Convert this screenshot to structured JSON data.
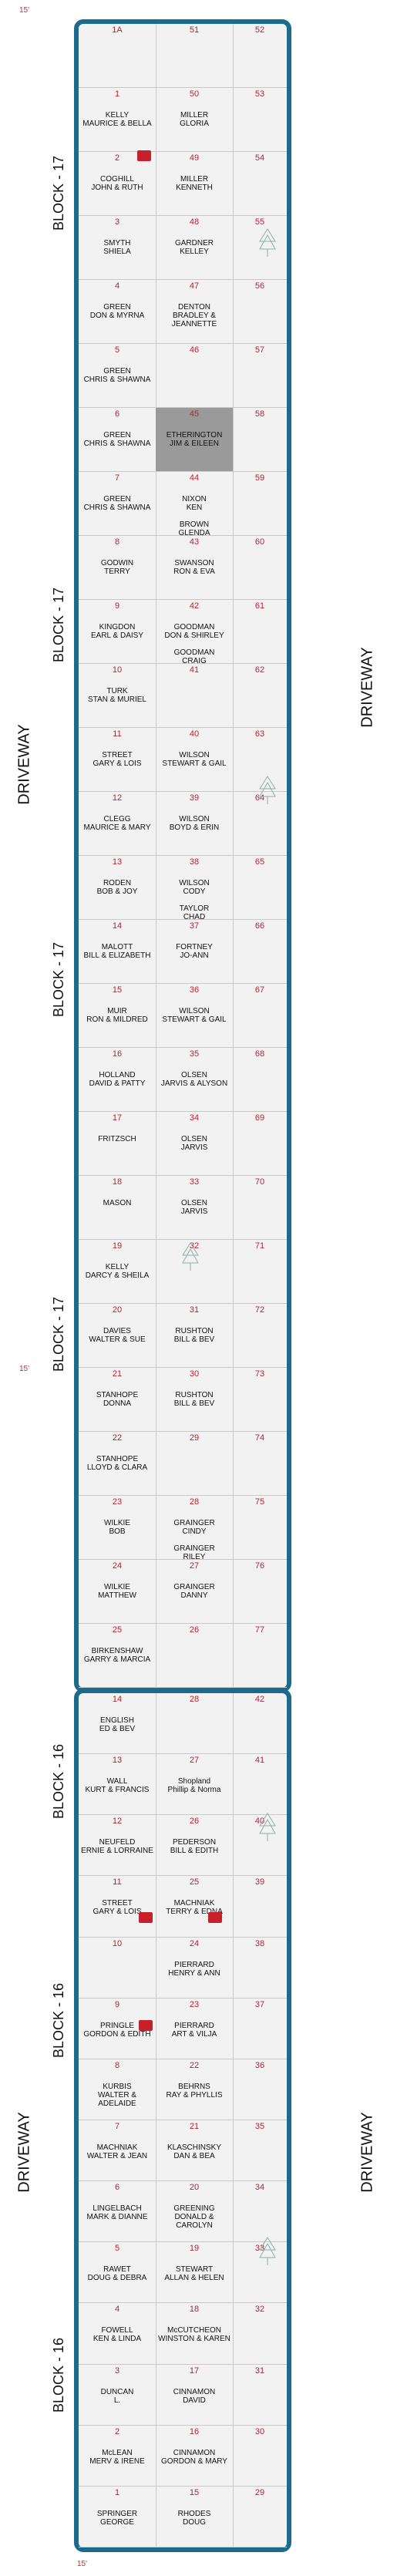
{
  "labels": {
    "block17": "BLOCK - 17",
    "block16": "BLOCK - 16",
    "driveway": "DRIVEWAY",
    "edge_ft": "15'"
  },
  "colors": {
    "frame": "#1d6b8c",
    "number": "#b5232b",
    "background": "#f2f2f2"
  },
  "block17_rows": [
    {
      "a": "1A",
      "b": "51",
      "c": "52",
      "occ_a": "",
      "occ_b": ""
    },
    {
      "a": "1",
      "b": "50",
      "c": "53",
      "occ_a": "KELLY\nMAURICE & BELLA",
      "occ_b": "MILLER\nGLORIA"
    },
    {
      "a": "2",
      "b": "49",
      "c": "54",
      "occ_a": "COGHILL\nJOHN & RUTH",
      "occ_b": "MILLER\nKENNETH"
    },
    {
      "a": "3",
      "b": "48",
      "c": "55",
      "occ_a": "SMYTH\nSHIELA",
      "occ_b": "GARDNER\nKELLEY"
    },
    {
      "a": "4",
      "b": "47",
      "c": "56",
      "occ_a": "GREEN\nDON & MYRNA",
      "occ_b": "DENTON\nBRADLEY &\nJEANNETTE"
    },
    {
      "a": "5",
      "b": "46",
      "c": "57",
      "occ_a": "GREEN\nCHRIS & SHAWNA",
      "occ_b": ""
    },
    {
      "a": "6",
      "b": "45",
      "c": "58",
      "occ_a": "GREEN\nCHRIS & SHAWNA",
      "occ_b": "ETHERINGTON\nJIM & EILEEN"
    },
    {
      "a": "7",
      "b": "44",
      "c": "59",
      "occ_a": "GREEN\nCHRIS & SHAWNA",
      "occ_b": "NIXON\nKEN\n\nBROWN\nGLENDA"
    },
    {
      "a": "8",
      "b": "43",
      "c": "60",
      "occ_a": "GODWIN\nTERRY",
      "occ_b": "SWANSON\nRON & EVA"
    },
    {
      "a": "9",
      "b": "42",
      "c": "61",
      "occ_a": "KINGDON\nEARL & DAISY",
      "occ_b": "GOODMAN\nDON & SHIRLEY\n\nGOODMAN\nCRAIG"
    },
    {
      "a": "10",
      "b": "41",
      "c": "62",
      "occ_a": "TURK\nSTAN & MURIEL",
      "occ_b": ""
    },
    {
      "a": "11",
      "b": "40",
      "c": "63",
      "occ_a": "STREET\nGARY & LOIS",
      "occ_b": "WILSON\nSTEWART & GAIL"
    },
    {
      "a": "12",
      "b": "39",
      "c": "64",
      "occ_a": "CLEGG\nMAURICE & MARY",
      "occ_b": "WILSON\nBOYD & ERIN"
    },
    {
      "a": "13",
      "b": "38",
      "c": "65",
      "occ_a": "RODEN\nBOB & JOY",
      "occ_b": "WILSON\nCODY\n\nTAYLOR\nCHAD"
    },
    {
      "a": "14",
      "b": "37",
      "c": "66",
      "occ_a": "MALOTT\nBILL & ELIZABETH",
      "occ_b": "FORTNEY\nJO-ANN"
    },
    {
      "a": "15",
      "b": "36",
      "c": "67",
      "occ_a": "MUIR\nRON & MILDRED",
      "occ_b": "WILSON\nSTEWART & GAIL"
    },
    {
      "a": "16",
      "b": "35",
      "c": "68",
      "occ_a": "HOLLAND\nDAVID & PATTY",
      "occ_b": "OLSEN\nJARVIS & ALYSON"
    },
    {
      "a": "17",
      "b": "34",
      "c": "69",
      "occ_a": "FRITZSCH",
      "occ_b": "OLSEN\nJARVIS"
    },
    {
      "a": "18",
      "b": "33",
      "c": "70",
      "occ_a": "MASON",
      "occ_b": "OLSEN\nJARVIS"
    },
    {
      "a": "19",
      "b": "32",
      "c": "71",
      "occ_a": "KELLY\nDARCY & SHEILA",
      "occ_b": ""
    },
    {
      "a": "20",
      "b": "31",
      "c": "72",
      "occ_a": "DAVIES\nWALTER & SUE",
      "occ_b": "RUSHTON\nBILL & BEV"
    },
    {
      "a": "21",
      "b": "30",
      "c": "73",
      "occ_a": "STANHOPE\nDONNA",
      "occ_b": "RUSHTON\nBILL & BEV"
    },
    {
      "a": "22",
      "b": "29",
      "c": "74",
      "occ_a": "STANHOPE\nLLOYD & CLARA",
      "occ_b": ""
    },
    {
      "a": "23",
      "b": "28",
      "c": "75",
      "occ_a": "WILKIE\nBOB",
      "occ_b": "GRAINGER\nCINDY\n\nGRAINGER\nRILEY"
    },
    {
      "a": "24",
      "b": "27",
      "c": "76",
      "occ_a": "WILKIE\nMATTHEW",
      "occ_b": "GRAINGER\nDANNY"
    },
    {
      "a": "25",
      "b": "26",
      "c": "77",
      "occ_a": "BIRKENSHAW\nGARRY & MARCIA",
      "occ_b": ""
    }
  ],
  "block16_rows": [
    {
      "a": "14",
      "b": "28",
      "c": "42",
      "occ_a": "ENGLISH\nED & BEV",
      "occ_b": ""
    },
    {
      "a": "13",
      "b": "27",
      "c": "41",
      "occ_a": "WALL\nKURT & FRANCIS",
      "occ_b": "Shopland\nPhillip & Norma"
    },
    {
      "a": "12",
      "b": "26",
      "c": "40",
      "occ_a": "NEUFELD\nERNIE & LORRAINE",
      "occ_b": "PEDERSON\nBILL & EDITH"
    },
    {
      "a": "11",
      "b": "25",
      "c": "39",
      "occ_a": "STREET\nGARY & LOIS",
      "occ_b": "MACHNIAK\nTERRY & EDNA"
    },
    {
      "a": "10",
      "b": "24",
      "c": "38",
      "occ_a": "",
      "occ_b": "PIERRARD\nHENRY & ANN"
    },
    {
      "a": "9",
      "b": "23",
      "c": "37",
      "occ_a": "PRINGLE\nGORDON & EDITH",
      "occ_b": "PIERRARD\nART & VILJA"
    },
    {
      "a": "8",
      "b": "22",
      "c": "36",
      "occ_a": "KURBIS\nWALTER &\nADELAIDE",
      "occ_b": "BEHRNS\nRAY & PHYLLIS"
    },
    {
      "a": "7",
      "b": "21",
      "c": "35",
      "occ_a": "MACHNIAK\nWALTER & JEAN",
      "occ_b": "KLASCHINSKY\nDAN & BEA"
    },
    {
      "a": "6",
      "b": "20",
      "c": "34",
      "occ_a": "LINGELBACH\nMARK & DIANNE",
      "occ_b": "GREENING\nDONALD &\nCAROLYN"
    },
    {
      "a": "5",
      "b": "19",
      "c": "33",
      "occ_a": "RAWET\nDOUG & DEBRA",
      "occ_b": "STEWART\nALLAN & HELEN"
    },
    {
      "a": "4",
      "b": "18",
      "c": "32",
      "occ_a": "FOWELL\nKEN & LINDA",
      "occ_b": "McCUTCHEON\nWINSTON & KAREN"
    },
    {
      "a": "3",
      "b": "17",
      "c": "31",
      "occ_a": "DUNCAN\nL.",
      "occ_b": "CINNAMON\nDAVID"
    },
    {
      "a": "2",
      "b": "16",
      "c": "30",
      "occ_a": "McLEAN\nMERV & IRENE",
      "occ_b": "CINNAMON\nGORDON & MARY"
    },
    {
      "a": "1",
      "b": "15",
      "c": "29",
      "occ_a": "SPRINGER\nGEORGE",
      "occ_b": "RHODES\nDOUG"
    }
  ]
}
